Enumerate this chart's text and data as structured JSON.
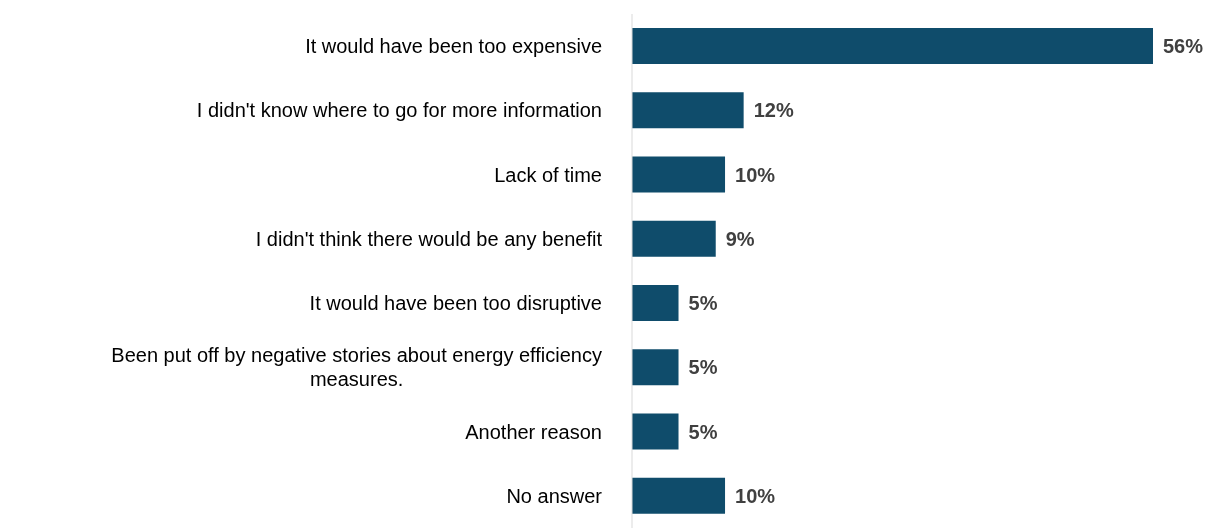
{
  "chart_data": {
    "type": "bar",
    "orientation": "horizontal",
    "categories": [
      "It would have been too expensive",
      "I didn't know where to go for more information",
      "Lack of time",
      "I didn't think there would be any benefit",
      "It would have been too disruptive",
      "Been put off by negative stories about energy efficiency measures.",
      "Another reason",
      "No answer"
    ],
    "values": [
      56,
      12,
      10,
      9,
      5,
      5,
      5,
      10
    ],
    "value_labels": [
      "56%",
      "12%",
      "10%",
      "9%",
      "5%",
      "5%",
      "5%",
      "10%"
    ],
    "color": "#0f4c6b",
    "tick_labels": "y"
  }
}
